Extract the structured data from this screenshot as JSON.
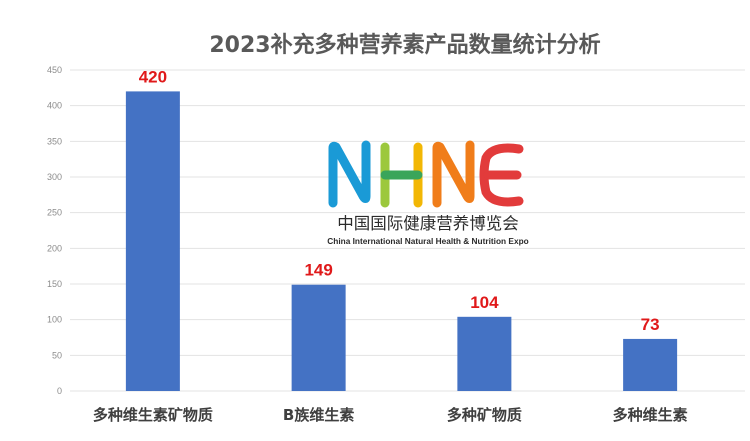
{
  "chart_data": {
    "type": "bar",
    "title": "2023补充多种营养素产品数量统计分析",
    "categories": [
      "多种维生素矿物质",
      "B族维生素",
      "多种矿物质",
      "多种维生素"
    ],
    "series": [
      {
        "values": [
          420,
          149,
          104,
          73
        ]
      }
    ],
    "ylim": [
      0,
      450
    ],
    "yticks": [
      0,
      50,
      100,
      150,
      200,
      250,
      300,
      350,
      400,
      450
    ],
    "data_labels": [
      "420",
      "149",
      "104",
      "73"
    ],
    "grid": true,
    "legend": "none",
    "xlabel": "",
    "ylabel": ""
  },
  "colors": {
    "bar": "#4472c4",
    "data_label": "#e0191a",
    "grid": "#e3e3e3"
  },
  "watermark": {
    "logo_text": "NHNE",
    "name_cn": "中国国际健康营养博览会",
    "name_en": "China International Natural Health & Nutrition Expo"
  }
}
